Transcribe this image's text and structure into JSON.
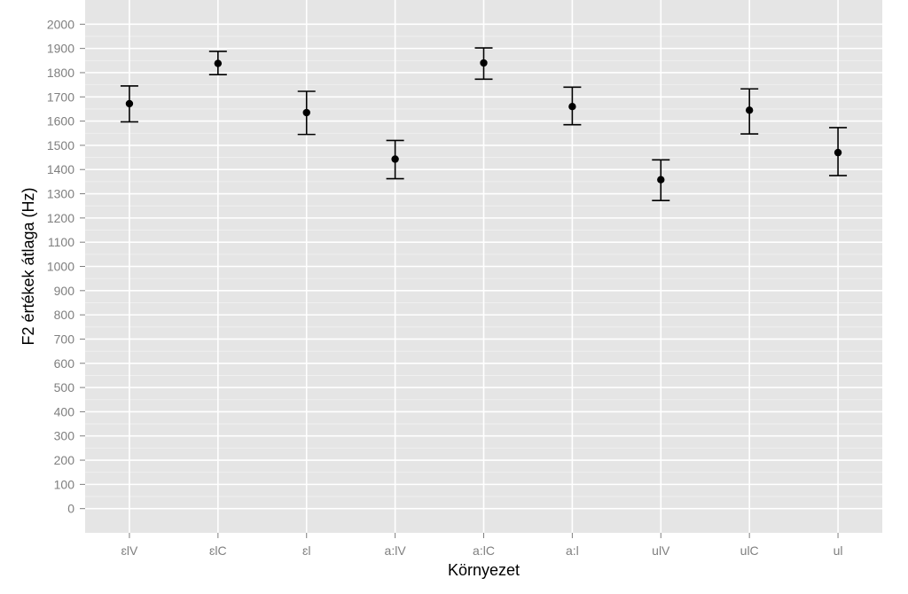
{
  "chart_data": {
    "type": "scatter",
    "subtype": "point-with-error-bars",
    "xlabel": "Környezet",
    "ylabel": "F2 értékek átlaga (Hz)",
    "categories": [
      "ɛlV",
      "ɛlC",
      "ɛl",
      "a:lV",
      "a:lC",
      "a:l",
      "ulV",
      "ulC",
      "ul"
    ],
    "series": [
      {
        "values": [
          1672,
          1838,
          1635,
          1443,
          1840,
          1660,
          1358,
          1645,
          1470
        ],
        "error_low": [
          1597,
          1792,
          1545,
          1362,
          1773,
          1585,
          1272,
          1547,
          1375
        ],
        "error_high": [
          1745,
          1888,
          1723,
          1520,
          1902,
          1740,
          1440,
          1733,
          1573
        ]
      }
    ],
    "ylim": [
      -100,
      2100
    ],
    "yticks": [
      0,
      100,
      200,
      300,
      400,
      500,
      600,
      700,
      800,
      900,
      1000,
      1100,
      1200,
      1300,
      1400,
      1500,
      1600,
      1700,
      1800,
      1900,
      2000
    ],
    "grid": true,
    "colors": {
      "panel_background": "#e5e5e5",
      "major_grid": "#ffffff",
      "minor_grid": "#f2f2f2",
      "points": "#000000",
      "error_bars": "#000000",
      "tick_labels": "#7f7f7f"
    }
  }
}
